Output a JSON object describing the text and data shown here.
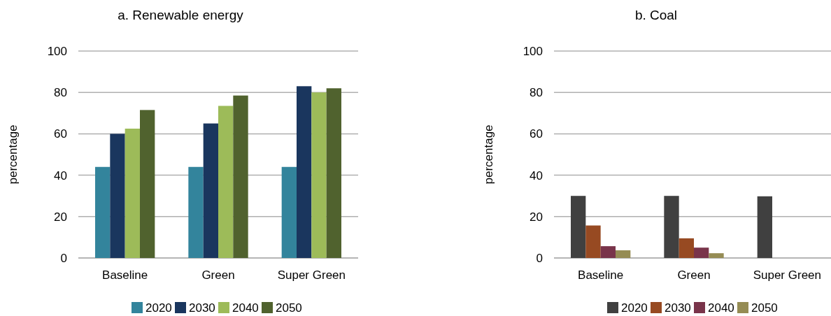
{
  "chart_data": [
    {
      "type": "bar",
      "title": "a.  Renewable energy",
      "ylabel": "percentage",
      "categories": [
        "Baseline",
        "Green",
        "Super Green"
      ],
      "ylim": [
        0,
        100
      ],
      "yticks": [
        0,
        20,
        40,
        60,
        80,
        100
      ],
      "grid": "y",
      "legend": "bottom",
      "series": [
        {
          "name": "2020",
          "color": "#33849c",
          "values": [
            44,
            44,
            44
          ]
        },
        {
          "name": "2030",
          "color": "#1a365e",
          "values": [
            60,
            65,
            83
          ]
        },
        {
          "name": "2040",
          "color": "#9dbb59",
          "values": [
            62.5,
            73.5,
            80
          ]
        },
        {
          "name": "2050",
          "color": "#50622e",
          "values": [
            71.5,
            78.5,
            82
          ]
        }
      ]
    },
    {
      "type": "bar",
      "title": "b. Coal",
      "ylabel": "percentage",
      "categories": [
        "Baseline",
        "Green",
        "Super Green"
      ],
      "ylim": [
        0,
        100
      ],
      "yticks": [
        0,
        20,
        40,
        60,
        80,
        100
      ],
      "grid": "y",
      "legend": "bottom",
      "series": [
        {
          "name": "2020",
          "color": "#404040",
          "values": [
            30,
            30,
            29.8
          ]
        },
        {
          "name": "2030",
          "color": "#974a22",
          "values": [
            15.7,
            9.5,
            0
          ]
        },
        {
          "name": "2040",
          "color": "#79344a",
          "values": [
            5.7,
            5,
            0
          ]
        },
        {
          "name": "2050",
          "color": "#958c54",
          "values": [
            3.7,
            2.3,
            0
          ]
        }
      ]
    }
  ]
}
